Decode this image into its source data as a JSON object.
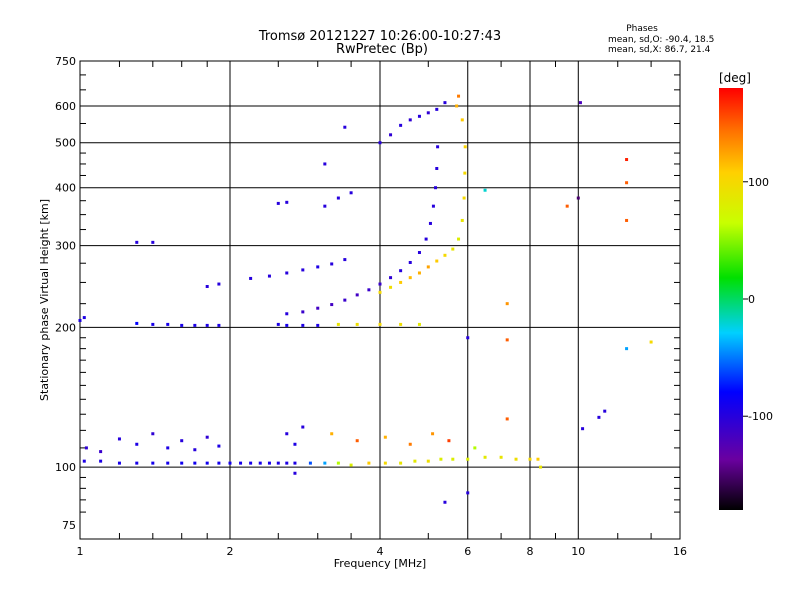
{
  "chart_data": {
    "type": "scatter",
    "title": "Tromsø 20121227 10:26:00-10:27:43",
    "subtitle": "RwPretec (Bp)",
    "info": {
      "heading": "Phases",
      "line1": "mean, sd,O: -90.4, 18.5",
      "line2": "mean, sd,X: 86.7, 21.4"
    },
    "xlabel": "Frequency [MHz]",
    "ylabel": "Stationary phase Virtual Height [km]",
    "x_scale": "log",
    "y_scale": "log",
    "xlim": [
      1,
      16
    ],
    "ylim": [
      70,
      750
    ],
    "x_ticks": [
      1,
      2,
      4,
      6,
      8,
      10,
      16
    ],
    "x_tick_labels": [
      "1",
      "2",
      "4",
      "6",
      "8",
      "10",
      "16"
    ],
    "y_ticks": [
      75,
      100,
      200,
      300,
      400,
      500,
      600,
      750
    ],
    "y_tick_labels": [
      "75",
      "100",
      "200",
      "300",
      "400",
      "500",
      "600",
      "750"
    ],
    "grid": true,
    "colorbar": {
      "label": "[deg]",
      "range": [
        -180,
        180
      ],
      "ticks": [
        100,
        0,
        -100
      ],
      "tick_labels": [
        "100",
        "0",
        "-100"
      ]
    },
    "series": [
      {
        "values": [
          {
            "x": 1.02,
            "y": 103,
            "phase": -95
          },
          {
            "x": 1.1,
            "y": 103,
            "phase": -95
          },
          {
            "x": 1.2,
            "y": 102,
            "phase": -92
          },
          {
            "x": 1.3,
            "y": 102,
            "phase": -92
          },
          {
            "x": 1.4,
            "y": 102,
            "phase": -90
          },
          {
            "x": 1.5,
            "y": 102,
            "phase": -90
          },
          {
            "x": 1.6,
            "y": 102,
            "phase": -88
          },
          {
            "x": 1.7,
            "y": 102,
            "phase": -88
          },
          {
            "x": 1.8,
            "y": 102,
            "phase": -88
          },
          {
            "x": 1.9,
            "y": 102,
            "phase": -90
          },
          {
            "x": 2.0,
            "y": 102,
            "phase": -90
          },
          {
            "x": 2.1,
            "y": 102,
            "phase": -92
          },
          {
            "x": 2.2,
            "y": 102,
            "phase": -92
          },
          {
            "x": 2.3,
            "y": 102,
            "phase": -92
          },
          {
            "x": 2.4,
            "y": 102,
            "phase": -92
          },
          {
            "x": 2.5,
            "y": 102,
            "phase": -95
          },
          {
            "x": 2.6,
            "y": 102,
            "phase": -95
          },
          {
            "x": 2.7,
            "y": 102,
            "phase": -95
          },
          {
            "x": 2.9,
            "y": 102,
            "phase": -60
          },
          {
            "x": 3.1,
            "y": 102,
            "phase": -40
          },
          {
            "x": 3.3,
            "y": 102,
            "phase": 60
          },
          {
            "x": 3.5,
            "y": 101,
            "phase": 80
          },
          {
            "x": 3.8,
            "y": 102,
            "phase": 110
          },
          {
            "x": 4.1,
            "y": 102,
            "phase": 100
          },
          {
            "x": 4.4,
            "y": 102,
            "phase": 90
          },
          {
            "x": 4.7,
            "y": 103,
            "phase": 85
          },
          {
            "x": 5.0,
            "y": 103,
            "phase": 95
          },
          {
            "x": 5.3,
            "y": 104,
            "phase": 80
          },
          {
            "x": 5.6,
            "y": 104,
            "phase": 80
          },
          {
            "x": 6.0,
            "y": 104,
            "phase": 80
          },
          {
            "x": 6.5,
            "y": 105,
            "phase": 85
          },
          {
            "x": 7.0,
            "y": 105,
            "phase": 90
          },
          {
            "x": 7.5,
            "y": 104,
            "phase": 95
          },
          {
            "x": 8.0,
            "y": 104,
            "phase": 100
          },
          {
            "x": 8.3,
            "y": 104,
            "phase": 110
          },
          {
            "x": 1.03,
            "y": 110,
            "phase": -105
          },
          {
            "x": 1.1,
            "y": 108,
            "phase": -110
          },
          {
            "x": 1.2,
            "y": 115,
            "phase": -100
          },
          {
            "x": 1.3,
            "y": 112,
            "phase": -95
          },
          {
            "x": 1.4,
            "y": 118,
            "phase": -105
          },
          {
            "x": 1.5,
            "y": 110,
            "phase": -95
          },
          {
            "x": 1.6,
            "y": 114,
            "phase": -100
          },
          {
            "x": 1.7,
            "y": 109,
            "phase": -100
          },
          {
            "x": 1.8,
            "y": 116,
            "phase": -105
          },
          {
            "x": 1.9,
            "y": 111,
            "phase": -95
          },
          {
            "x": 2.6,
            "y": 118,
            "phase": -100
          },
          {
            "x": 2.7,
            "y": 112,
            "phase": -95
          },
          {
            "x": 2.8,
            "y": 122,
            "phase": -100
          },
          {
            "x": 3.2,
            "y": 118,
            "phase": 120
          },
          {
            "x": 3.6,
            "y": 114,
            "phase": 150
          },
          {
            "x": 4.1,
            "y": 116,
            "phase": 120
          },
          {
            "x": 4.6,
            "y": 112,
            "phase": 140
          },
          {
            "x": 5.1,
            "y": 118,
            "phase": 130
          },
          {
            "x": 5.5,
            "y": 114,
            "phase": 160
          },
          {
            "x": 6.2,
            "y": 110,
            "phase": 60
          },
          {
            "x": 1.0,
            "y": 207,
            "phase": -95
          },
          {
            "x": 1.02,
            "y": 210,
            "phase": -95
          },
          {
            "x": 1.3,
            "y": 204,
            "phase": -80
          },
          {
            "x": 1.4,
            "y": 203,
            "phase": -92
          },
          {
            "x": 1.5,
            "y": 203,
            "phase": -92
          },
          {
            "x": 1.6,
            "y": 202,
            "phase": -92
          },
          {
            "x": 1.7,
            "y": 202,
            "phase": -95
          },
          {
            "x": 1.8,
            "y": 202,
            "phase": -95
          },
          {
            "x": 1.9,
            "y": 202,
            "phase": -95
          },
          {
            "x": 2.5,
            "y": 203,
            "phase": -95
          },
          {
            "x": 2.6,
            "y": 202,
            "phase": -92
          },
          {
            "x": 2.8,
            "y": 202,
            "phase": -95
          },
          {
            "x": 3.0,
            "y": 202,
            "phase": -95
          },
          {
            "x": 3.3,
            "y": 203,
            "phase": 90
          },
          {
            "x": 3.6,
            "y": 203,
            "phase": 95
          },
          {
            "x": 4.0,
            "y": 203,
            "phase": 100
          },
          {
            "x": 4.4,
            "y": 203,
            "phase": 95
          },
          {
            "x": 4.8,
            "y": 203,
            "phase": 85
          },
          {
            "x": 2.6,
            "y": 214,
            "phase": -100
          },
          {
            "x": 2.8,
            "y": 216,
            "phase": -110
          },
          {
            "x": 3.0,
            "y": 220,
            "phase": -115
          },
          {
            "x": 3.2,
            "y": 224,
            "phase": -115
          },
          {
            "x": 3.4,
            "y": 229,
            "phase": -110
          },
          {
            "x": 3.6,
            "y": 235,
            "phase": -115
          },
          {
            "x": 3.8,
            "y": 241,
            "phase": -110
          },
          {
            "x": 4.0,
            "y": 248,
            "phase": -110
          },
          {
            "x": 4.2,
            "y": 256,
            "phase": -105
          },
          {
            "x": 4.4,
            "y": 265,
            "phase": -100
          },
          {
            "x": 4.6,
            "y": 276,
            "phase": -100
          },
          {
            "x": 4.8,
            "y": 290,
            "phase": -100
          },
          {
            "x": 4.95,
            "y": 310,
            "phase": -100
          },
          {
            "x": 5.05,
            "y": 335,
            "phase": -100
          },
          {
            "x": 5.12,
            "y": 365,
            "phase": -100
          },
          {
            "x": 5.17,
            "y": 400,
            "phase": -100
          },
          {
            "x": 5.2,
            "y": 440,
            "phase": -100
          },
          {
            "x": 5.22,
            "y": 490,
            "phase": -100
          },
          {
            "x": 4.0,
            "y": 238,
            "phase": 100
          },
          {
            "x": 4.2,
            "y": 244,
            "phase": 95
          },
          {
            "x": 4.4,
            "y": 250,
            "phase": 110
          },
          {
            "x": 4.6,
            "y": 256,
            "phase": 115
          },
          {
            "x": 4.8,
            "y": 262,
            "phase": 120
          },
          {
            "x": 5.0,
            "y": 270,
            "phase": 125
          },
          {
            "x": 5.2,
            "y": 278,
            "phase": 110
          },
          {
            "x": 5.4,
            "y": 286,
            "phase": 100
          },
          {
            "x": 5.6,
            "y": 295,
            "phase": 90
          },
          {
            "x": 5.75,
            "y": 310,
            "phase": 80
          },
          {
            "x": 5.85,
            "y": 340,
            "phase": 90
          },
          {
            "x": 5.9,
            "y": 380,
            "phase": 100
          },
          {
            "x": 5.92,
            "y": 430,
            "phase": 100
          },
          {
            "x": 5.93,
            "y": 490,
            "phase": 105
          },
          {
            "x": 5.85,
            "y": 560,
            "phase": 110
          },
          {
            "x": 5.7,
            "y": 600,
            "phase": 120
          },
          {
            "x": 5.75,
            "y": 630,
            "phase": 140
          },
          {
            "x": 2.2,
            "y": 255,
            "phase": -100
          },
          {
            "x": 2.4,
            "y": 258,
            "phase": -100
          },
          {
            "x": 2.6,
            "y": 262,
            "phase": -100
          },
          {
            "x": 2.8,
            "y": 266,
            "phase": -100
          },
          {
            "x": 3.0,
            "y": 270,
            "phase": -95
          },
          {
            "x": 3.2,
            "y": 274,
            "phase": -100
          },
          {
            "x": 3.4,
            "y": 280,
            "phase": -100
          },
          {
            "x": 1.8,
            "y": 245,
            "phase": -100
          },
          {
            "x": 1.9,
            "y": 248,
            "phase": -100
          },
          {
            "x": 1.3,
            "y": 305,
            "phase": -100
          },
          {
            "x": 1.4,
            "y": 305,
            "phase": -100
          },
          {
            "x": 2.5,
            "y": 370,
            "phase": -100
          },
          {
            "x": 2.6,
            "y": 372,
            "phase": -100
          },
          {
            "x": 3.1,
            "y": 365,
            "phase": -100
          },
          {
            "x": 3.3,
            "y": 380,
            "phase": -100
          },
          {
            "x": 3.5,
            "y": 390,
            "phase": -100
          },
          {
            "x": 3.4,
            "y": 540,
            "phase": -100
          },
          {
            "x": 3.1,
            "y": 450,
            "phase": -100
          },
          {
            "x": 4.0,
            "y": 500,
            "phase": -100
          },
          {
            "x": 4.2,
            "y": 520,
            "phase": -105
          },
          {
            "x": 4.4,
            "y": 545,
            "phase": -100
          },
          {
            "x": 4.6,
            "y": 560,
            "phase": -105
          },
          {
            "x": 4.8,
            "y": 570,
            "phase": -100
          },
          {
            "x": 5.0,
            "y": 580,
            "phase": -105
          },
          {
            "x": 5.2,
            "y": 590,
            "phase": -100
          },
          {
            "x": 5.4,
            "y": 610,
            "phase": -100
          },
          {
            "x": 6.5,
            "y": 395,
            "phase": -20
          },
          {
            "x": 9.5,
            "y": 365,
            "phase": 150
          },
          {
            "x": 10.0,
            "y": 380,
            "phase": -150
          },
          {
            "x": 10.1,
            "y": 610,
            "phase": -120
          },
          {
            "x": 12.5,
            "y": 460,
            "phase": 170
          },
          {
            "x": 12.5,
            "y": 410,
            "phase": 150
          },
          {
            "x": 12.5,
            "y": 340,
            "phase": 150
          },
          {
            "x": 7.2,
            "y": 225,
            "phase": 130
          },
          {
            "x": 7.2,
            "y": 188,
            "phase": 150
          },
          {
            "x": 6.0,
            "y": 190,
            "phase": -100
          },
          {
            "x": 12.5,
            "y": 180,
            "phase": -40
          },
          {
            "x": 14.0,
            "y": 186,
            "phase": 100
          },
          {
            "x": 11.0,
            "y": 128,
            "phase": -100
          },
          {
            "x": 11.3,
            "y": 132,
            "phase": -100
          },
          {
            "x": 10.2,
            "y": 121,
            "phase": -100
          },
          {
            "x": 7.2,
            "y": 127,
            "phase": 150
          },
          {
            "x": 8.4,
            "y": 100,
            "phase": 90
          },
          {
            "x": 6.0,
            "y": 88,
            "phase": -100
          },
          {
            "x": 2.7,
            "y": 97,
            "phase": -100
          },
          {
            "x": 5.4,
            "y": 84,
            "phase": -100
          }
        ]
      }
    ]
  }
}
